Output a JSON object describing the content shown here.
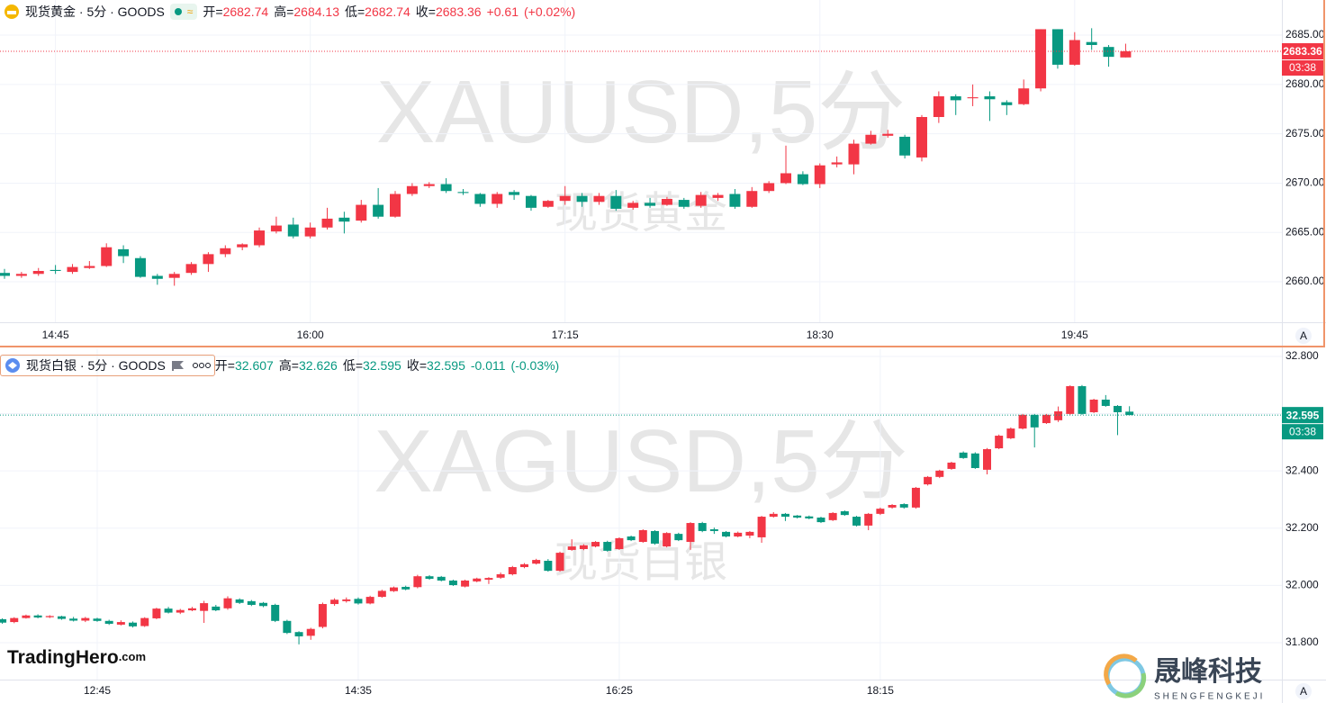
{
  "chart_data": [
    {
      "type": "candlestick",
      "title": "现货黄金 · 5分 · GOODS",
      "watermark": "XAUUSD,5分",
      "watermark_name": "现货黄金",
      "ohlc_labels": [
        "开=",
        "高=",
        "低=",
        "收="
      ],
      "change": {
        "value": 0.61,
        "label": "+0.61"
      },
      "change_pct": {
        "value": 0.02,
        "label": "(+0.02%)"
      },
      "countdown": "03:38",
      "auto_button": "A",
      "up_color": "#f23645",
      "down_color": "#089981",
      "grid": true,
      "ylim": [
        2655.9,
        2688.56
      ],
      "yticks": [
        {
          "value": 2660,
          "label": "2660.00"
        },
        {
          "value": 2665,
          "label": "2665.00"
        },
        {
          "value": 2670,
          "label": "2670.00"
        },
        {
          "value": 2675,
          "label": "2675.00"
        },
        {
          "value": 2680,
          "label": "2680.00"
        },
        {
          "value": 2685,
          "label": "2685.00"
        }
      ],
      "categories": [
        null,
        null,
        null,
        "14:45",
        null,
        null,
        null,
        null,
        null,
        null,
        null,
        null,
        null,
        null,
        null,
        null,
        null,
        null,
        "16:00",
        null,
        null,
        null,
        null,
        null,
        null,
        null,
        null,
        null,
        null,
        null,
        null,
        null,
        null,
        "17:15",
        null,
        null,
        null,
        null,
        null,
        null,
        null,
        null,
        null,
        null,
        null,
        null,
        null,
        null,
        "18:30",
        null,
        null,
        null,
        null,
        null,
        null,
        null,
        null,
        null,
        null,
        null,
        null,
        null,
        null,
        "19:45",
        null,
        null,
        null
      ],
      "open": [
        2660.9,
        2660.6,
        2660.8,
        2661.2,
        2661.0,
        2661.4,
        2661.6,
        2663.3,
        2662.4,
        2660.6,
        2660.4,
        2660.9,
        2661.8,
        2662.8,
        2663.5,
        2663.7,
        2665.1,
        2665.8,
        2664.6,
        2665.5,
        2666.5,
        2666.2,
        2667.8,
        2666.6,
        2668.9,
        2669.7,
        2669.9,
        2669.1,
        2668.9,
        2667.9,
        2669.1,
        2668.7,
        2667.6,
        2668.2,
        2668.7,
        2668.1,
        2668.7,
        2667.5,
        2668.0,
        2667.8,
        2668.3,
        2667.7,
        2668.5,
        2668.9,
        2667.6,
        2669.2,
        2670.0,
        2670.9,
        2669.9,
        2671.9,
        2671.9,
        2674.0,
        2674.8,
        2674.7,
        2672.6,
        2676.7,
        2678.8,
        2678.6,
        2678.8,
        2678.2,
        2678.0,
        2679.6,
        2685.6,
        2682.0,
        2684.3,
        2683.8,
        2682.74
      ],
      "high": [
        2661.3,
        2661.0,
        2661.4,
        2661.7,
        2661.8,
        2662.1,
        2663.9,
        2663.7,
        2662.6,
        2660.8,
        2661.0,
        2662.0,
        2663.0,
        2663.7,
        2663.9,
        2665.5,
        2666.6,
        2666.5,
        2666.0,
        2667.5,
        2667.1,
        2668.3,
        2669.5,
        2669.2,
        2670.0,
        2670.1,
        2670.5,
        2669.4,
        2669.0,
        2669.1,
        2669.3,
        2668.8,
        2668.3,
        2669.7,
        2669.0,
        2669.0,
        2669.3,
        2668.2,
        2668.5,
        2668.6,
        2668.5,
        2669.1,
        2669.0,
        2669.4,
        2669.6,
        2670.2,
        2673.8,
        2671.2,
        2672.0,
        2672.7,
        2674.4,
        2675.3,
        2675.4,
        2674.9,
        2676.9,
        2679.3,
        2679.0,
        2680.0,
        2679.3,
        2678.4,
        2680.5,
        2685.6,
        2685.6,
        2685.3,
        2685.7,
        2684.0,
        2684.13
      ],
      "low": [
        2660.3,
        2660.4,
        2660.6,
        2660.8,
        2660.8,
        2661.3,
        2661.5,
        2661.9,
        2660.4,
        2659.7,
        2659.6,
        2660.7,
        2661.0,
        2662.5,
        2663.2,
        2663.5,
        2664.9,
        2664.4,
        2664.4,
        2665.3,
        2664.9,
        2666.0,
        2666.4,
        2666.5,
        2668.7,
        2669.5,
        2669.0,
        2668.8,
        2667.6,
        2667.5,
        2668.3,
        2667.2,
        2667.5,
        2667.8,
        2667.6,
        2667.8,
        2667.2,
        2667.3,
        2667.5,
        2667.7,
        2667.4,
        2667.5,
        2668.2,
        2667.4,
        2667.5,
        2669.0,
        2669.9,
        2669.8,
        2669.5,
        2671.6,
        2670.9,
        2673.9,
        2674.6,
        2672.5,
        2672.2,
        2676.1,
        2676.9,
        2677.8,
        2676.3,
        2676.9,
        2677.9,
        2679.3,
        2681.6,
        2681.9,
        2683.5,
        2681.8,
        2682.74
      ],
      "close": [
        2660.6,
        2660.8,
        2661.1,
        2661.1,
        2661.5,
        2661.6,
        2663.5,
        2662.6,
        2660.5,
        2660.3,
        2660.8,
        2661.8,
        2662.8,
        2663.4,
        2663.8,
        2665.2,
        2665.7,
        2664.6,
        2665.5,
        2666.4,
        2666.1,
        2667.8,
        2666.6,
        2668.9,
        2669.7,
        2669.9,
        2669.2,
        2669.0,
        2667.9,
        2668.9,
        2668.8,
        2667.5,
        2668.2,
        2668.7,
        2668.1,
        2668.7,
        2667.4,
        2668.0,
        2667.7,
        2668.4,
        2667.6,
        2668.8,
        2668.8,
        2667.6,
        2669.2,
        2670.0,
        2671.0,
        2669.9,
        2671.8,
        2672.1,
        2674.0,
        2674.9,
        2675.0,
        2672.8,
        2676.7,
        2678.8,
        2678.4,
        2678.7,
        2678.5,
        2677.9,
        2679.6,
        2685.6,
        2682.0,
        2684.5,
        2684.0,
        2682.8,
        2683.36
      ]
    },
    {
      "type": "candlestick",
      "title": "现货白银 · 5分 · GOODS",
      "watermark": "XAGUSD,5分",
      "watermark_name": "现货白银",
      "ohlc_labels": [
        "开=",
        "高=",
        "低=",
        "收="
      ],
      "change": {
        "value": -0.011,
        "label": "-0.011"
      },
      "change_pct": {
        "value": -0.03,
        "label": "(-0.03%)"
      },
      "countdown": "03:38",
      "auto_button": "A",
      "up_color": "#f23645",
      "down_color": "#089981",
      "grid": true,
      "ylim": [
        31.671,
        32.825
      ],
      "yticks": [
        {
          "value": 31.8,
          "label": "31.800"
        },
        {
          "value": 32,
          "label": "32.000"
        },
        {
          "value": 32.2,
          "label": "32.200"
        },
        {
          "value": 32.4,
          "label": "32.400"
        },
        {
          "value": 32.6,
          "label": "32.600"
        },
        {
          "value": 32.8,
          "label": "32.800"
        }
      ],
      "categories": [
        null,
        null,
        null,
        null,
        null,
        null,
        null,
        null,
        "12:45",
        null,
        null,
        null,
        null,
        null,
        null,
        null,
        null,
        null,
        null,
        null,
        null,
        null,
        null,
        null,
        null,
        null,
        null,
        null,
        null,
        null,
        "14:35",
        null,
        null,
        null,
        null,
        null,
        null,
        null,
        null,
        null,
        null,
        null,
        null,
        null,
        null,
        null,
        null,
        null,
        null,
        null,
        null,
        null,
        "16:25",
        null,
        null,
        null,
        null,
        null,
        null,
        null,
        null,
        null,
        null,
        null,
        null,
        null,
        null,
        null,
        null,
        null,
        null,
        null,
        null,
        null,
        "18:15",
        null,
        null,
        null,
        null,
        null,
        null,
        null,
        null,
        null,
        null,
        null,
        null,
        null,
        null,
        null,
        null,
        null,
        null,
        null,
        null,
        null
      ],
      "open": [
        31.882,
        31.872,
        31.886,
        31.895,
        31.889,
        31.892,
        31.884,
        31.877,
        31.884,
        31.876,
        31.863,
        31.87,
        31.858,
        31.885,
        31.919,
        31.905,
        31.913,
        31.911,
        31.926,
        31.92,
        31.951,
        31.945,
        31.939,
        31.932,
        31.876,
        31.837,
        31.824,
        31.855,
        31.935,
        31.945,
        31.953,
        31.937,
        31.96,
        31.98,
        31.995,
        31.994,
        32.032,
        32.03,
        32.017,
        31.996,
        32.014,
        32.02,
        32.027,
        32.039,
        32.064,
        32.076,
        32.086,
        32.051,
        32.124,
        32.127,
        32.136,
        32.152,
        32.127,
        32.171,
        32.152,
        32.19,
        32.136,
        32.18,
        32.152,
        32.218,
        32.196,
        32.187,
        32.171,
        32.174,
        32.168,
        32.24,
        32.25,
        32.244,
        32.241,
        32.237,
        32.228,
        32.259,
        32.24,
        32.209,
        32.25,
        32.272,
        32.284,
        32.272,
        32.353,
        32.379,
        32.407,
        32.464,
        32.461,
        32.404,
        32.479,
        32.514,
        32.548,
        32.596,
        32.567,
        32.577,
        32.599,
        32.696,
        32.605,
        32.649,
        32.627,
        32.607
      ],
      "high": [
        31.885,
        31.889,
        31.898,
        31.899,
        31.896,
        31.894,
        31.89,
        31.89,
        31.887,
        31.88,
        31.878,
        31.874,
        31.889,
        31.922,
        31.925,
        31.918,
        31.925,
        31.946,
        31.932,
        31.962,
        31.955,
        31.949,
        31.942,
        31.936,
        31.88,
        31.84,
        31.852,
        31.94,
        31.955,
        31.958,
        31.958,
        31.964,
        31.985,
        31.996,
        31.999,
        32.037,
        32.036,
        32.033,
        32.02,
        32.02,
        32.027,
        32.029,
        32.045,
        32.068,
        32.078,
        32.093,
        32.092,
        32.118,
        32.161,
        32.144,
        32.155,
        32.156,
        32.168,
        32.174,
        32.196,
        32.193,
        32.186,
        32.184,
        32.221,
        32.222,
        32.202,
        32.19,
        32.188,
        32.19,
        32.243,
        32.256,
        32.253,
        32.246,
        32.244,
        32.24,
        32.256,
        32.262,
        32.243,
        32.253,
        32.272,
        32.284,
        32.287,
        32.344,
        32.382,
        32.404,
        32.432,
        32.468,
        32.465,
        32.48,
        32.527,
        32.552,
        32.599,
        32.599,
        32.599,
        32.625,
        32.699,
        32.7,
        32.652,
        32.665,
        32.63,
        32.626
      ],
      "low": [
        31.866,
        31.868,
        31.884,
        31.885,
        31.886,
        31.88,
        31.874,
        31.872,
        31.873,
        31.862,
        31.86,
        31.853,
        31.855,
        31.882,
        31.902,
        31.9,
        31.91,
        31.869,
        31.91,
        31.915,
        31.935,
        31.928,
        31.924,
        31.872,
        31.83,
        31.794,
        31.81,
        31.85,
        31.929,
        31.94,
        31.933,
        31.934,
        31.957,
        31.977,
        31.983,
        31.99,
        32.02,
        32.014,
        31.998,
        31.993,
        32.011,
        32.005,
        32.023,
        32.035,
        32.06,
        32.073,
        32.048,
        32.048,
        32.121,
        32.123,
        32.133,
        32.118,
        32.124,
        32.155,
        32.149,
        32.142,
        32.133,
        32.155,
        32.124,
        32.186,
        32.18,
        32.168,
        32.168,
        32.165,
        32.149,
        32.237,
        32.225,
        32.234,
        32.231,
        32.218,
        32.225,
        32.243,
        32.206,
        32.193,
        32.246,
        32.268,
        32.268,
        32.268,
        32.349,
        32.375,
        32.404,
        32.442,
        32.407,
        32.388,
        32.476,
        32.511,
        32.545,
        32.482,
        32.564,
        32.571,
        32.596,
        32.596,
        32.602,
        32.624,
        32.525,
        32.595
      ],
      "close": [
        31.87,
        31.886,
        31.895,
        31.888,
        31.893,
        31.883,
        31.877,
        31.886,
        31.876,
        31.866,
        31.872,
        31.857,
        31.886,
        31.919,
        31.905,
        31.914,
        31.92,
        31.938,
        31.913,
        31.955,
        31.939,
        31.932,
        31.928,
        31.876,
        31.834,
        31.822,
        31.848,
        31.935,
        31.95,
        31.951,
        31.937,
        31.96,
        31.981,
        31.993,
        31.986,
        32.032,
        32.023,
        32.017,
        32.001,
        32.017,
        32.024,
        32.026,
        32.039,
        32.064,
        32.074,
        32.089,
        32.051,
        32.114,
        32.136,
        32.14,
        32.152,
        32.121,
        32.165,
        32.158,
        32.193,
        32.146,
        32.183,
        32.158,
        32.218,
        32.19,
        32.19,
        32.171,
        32.184,
        32.187,
        32.24,
        32.25,
        32.24,
        32.237,
        32.234,
        32.221,
        32.253,
        32.246,
        32.209,
        32.25,
        32.268,
        32.281,
        32.272,
        32.341,
        32.379,
        32.401,
        32.429,
        32.445,
        32.41,
        32.476,
        32.523,
        32.548,
        32.596,
        32.552,
        32.596,
        32.608,
        32.696,
        32.599,
        32.649,
        32.627,
        32.605,
        32.595
      ]
    }
  ],
  "branding": {
    "trading_logo": "TradingHero",
    "trading_logo_suffix": ".com",
    "company": "晟峰科技",
    "company_pinyin": "SHENGFENGKEJI"
  }
}
